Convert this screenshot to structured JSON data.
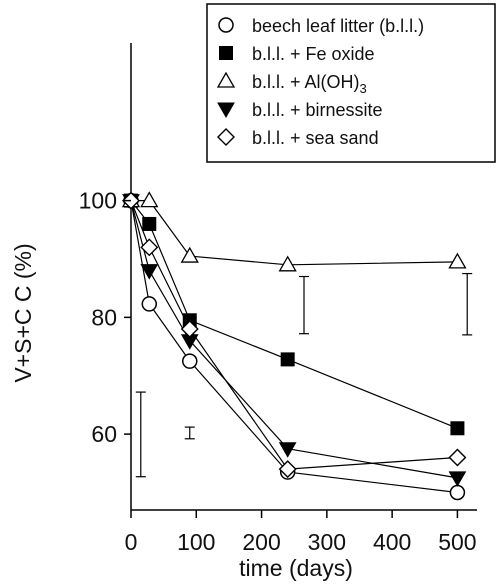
{
  "chart_data": {
    "type": "line",
    "xlabel": "time (days)",
    "ylabel": "V+S+C C (%)",
    "xlim": [
      0,
      530
    ],
    "ylim": [
      47,
      127
    ],
    "xticks": [
      "0",
      "100",
      "200",
      "300",
      "400",
      "500"
    ],
    "yticks": [
      "60",
      "80",
      "100"
    ],
    "grid": false,
    "legend_position": "top-right",
    "series": [
      {
        "name": "beech leaf litter (b.l.l.)",
        "marker": "circle-open",
        "x": [
          0,
          28,
          90,
          240,
          500
        ],
        "y": [
          100,
          82.3,
          72.5,
          53.5,
          50
        ]
      },
      {
        "name": "b.l.l. + Fe oxide",
        "marker": "square-filled",
        "x": [
          0,
          28,
          90,
          240,
          500
        ],
        "y": [
          100,
          96,
          79.5,
          72.8,
          61
        ]
      },
      {
        "name": "b.l.l. + Al(OH)",
        "name_subscript": "3",
        "marker": "triangle-up-open",
        "x": [
          0,
          28,
          90,
          240,
          500
        ],
        "y": [
          100,
          100,
          90.5,
          89,
          89.5
        ]
      },
      {
        "name": "b.l.l. + birnessite",
        "marker": "triangle-down-filled",
        "x": [
          0,
          28,
          90,
          240,
          500
        ],
        "y": [
          100,
          88,
          76,
          57.5,
          52.5
        ]
      },
      {
        "name": "b.l.l. + sea sand",
        "marker": "diamond-open",
        "x": [
          0,
          28,
          90,
          240,
          500
        ],
        "y": [
          100,
          92,
          78,
          54,
          56
        ]
      }
    ],
    "error_bars": [
      {
        "x": 15,
        "low": 52.7,
        "high": 67.2
      },
      {
        "x": 90,
        "low": 59.2,
        "high": 61.2
      },
      {
        "x": 265,
        "low": 77.2,
        "high": 87
      },
      {
        "x": 515,
        "low": 77,
        "high": 87.5
      }
    ]
  }
}
